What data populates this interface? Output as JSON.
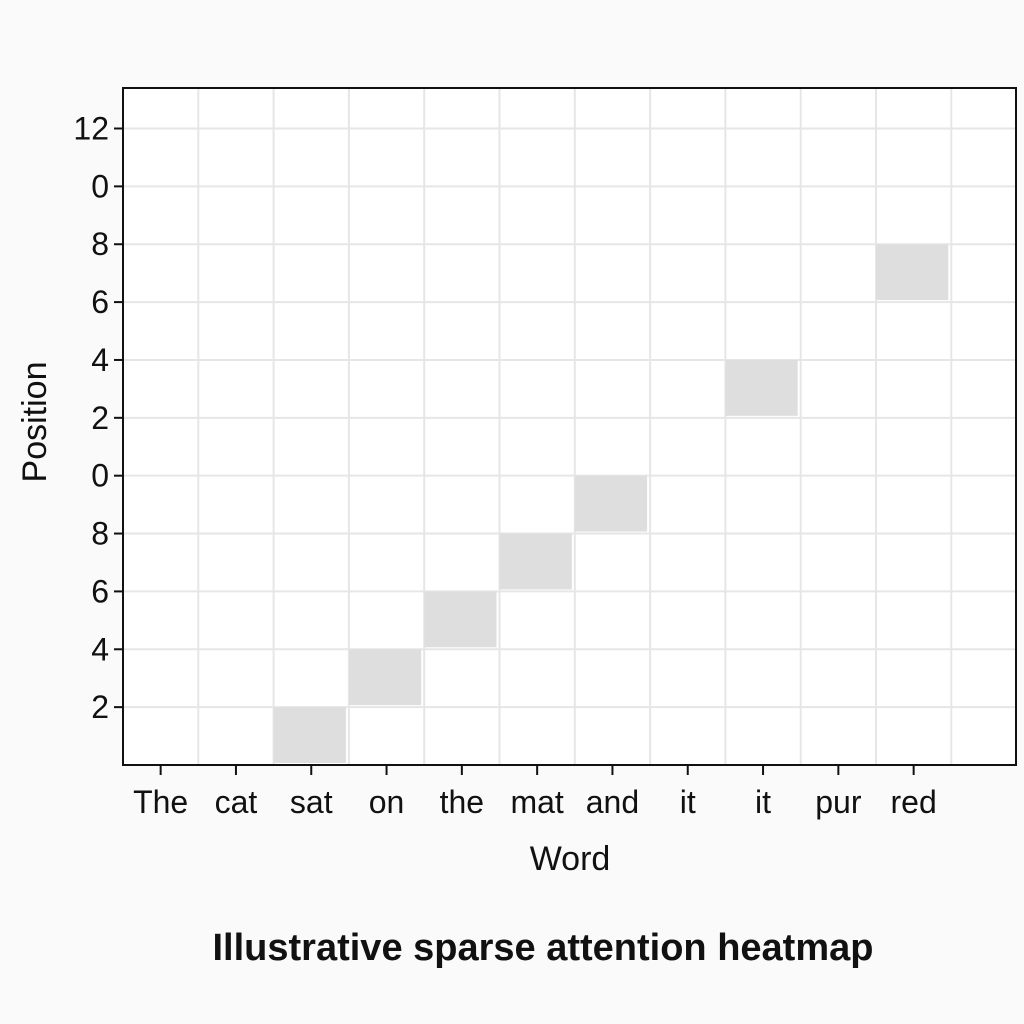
{
  "chart_data": {
    "type": "heatmap",
    "title": "Illustrative sparse attention heatmap",
    "xlabel": "Word",
    "ylabel": "Position",
    "x_categories": [
      "The",
      "cat",
      "sat",
      "on",
      "the",
      "mat",
      "and",
      "it",
      "it",
      "pur",
      "red"
    ],
    "y_ticks": [
      {
        "value": 1,
        "label": "2"
      },
      {
        "value": 2,
        "label": "4"
      },
      {
        "value": 3,
        "label": "6"
      },
      {
        "value": 4,
        "label": "8"
      },
      {
        "value": 5,
        "label": "0"
      },
      {
        "value": 6,
        "label": "2"
      },
      {
        "value": 7,
        "label": "4"
      },
      {
        "value": 8,
        "label": "6"
      },
      {
        "value": 9,
        "label": "8"
      },
      {
        "value": 10,
        "label": "0"
      },
      {
        "value": 11,
        "label": "12"
      }
    ],
    "ylim": [
      0,
      11.7
    ],
    "grid": true,
    "cells": [
      {
        "x": "sat",
        "row": 0,
        "value": 1
      },
      {
        "x": "on",
        "row": 1,
        "value": 1
      },
      {
        "x": "the",
        "row": 2,
        "value": 1
      },
      {
        "x": "mat",
        "row": 3,
        "value": 1
      },
      {
        "x": "and",
        "row": 4,
        "value": 1
      },
      {
        "x": "it",
        "col": 8,
        "row": 6,
        "value": 1
      },
      {
        "x": "red",
        "row": 8,
        "value": 1
      }
    ],
    "colors": {
      "cell": "#dedede",
      "grid": "#e6e6e6",
      "plot_bg": "#ffffff",
      "axis": "#111111"
    }
  }
}
